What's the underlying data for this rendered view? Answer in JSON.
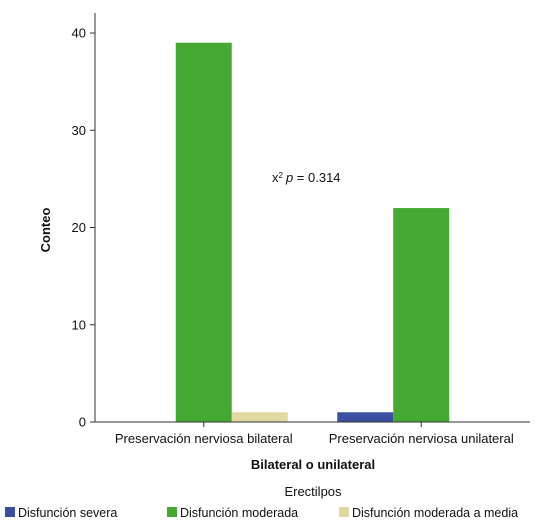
{
  "chart_data": {
    "type": "bar",
    "categories": [
      "Preservación nerviosa bilateral",
      "Preservación nerviosa unilateral"
    ],
    "series": [
      {
        "name": "Disfunción severa",
        "color": "#3a4fa0",
        "values": [
          0,
          1
        ]
      },
      {
        "name": "Disfunción moderada",
        "color": "#44a832",
        "values": [
          39,
          22
        ]
      },
      {
        "name": "Disfunción moderada a media",
        "color": "#e0d9a2",
        "values": [
          1,
          0
        ]
      }
    ],
    "title": "",
    "xlabel": "Bilateral o unilateral",
    "ylabel": "Conteo",
    "ylim": [
      0,
      40
    ],
    "yticks": [
      0,
      10,
      20,
      30,
      40
    ],
    "grid": false,
    "legend": {
      "title": "Erectilpos",
      "position": "bottom"
    },
    "annotation": {
      "prefix": "x",
      "superscript": "2",
      "variable": "p",
      "rest": " = 0.314"
    }
  }
}
